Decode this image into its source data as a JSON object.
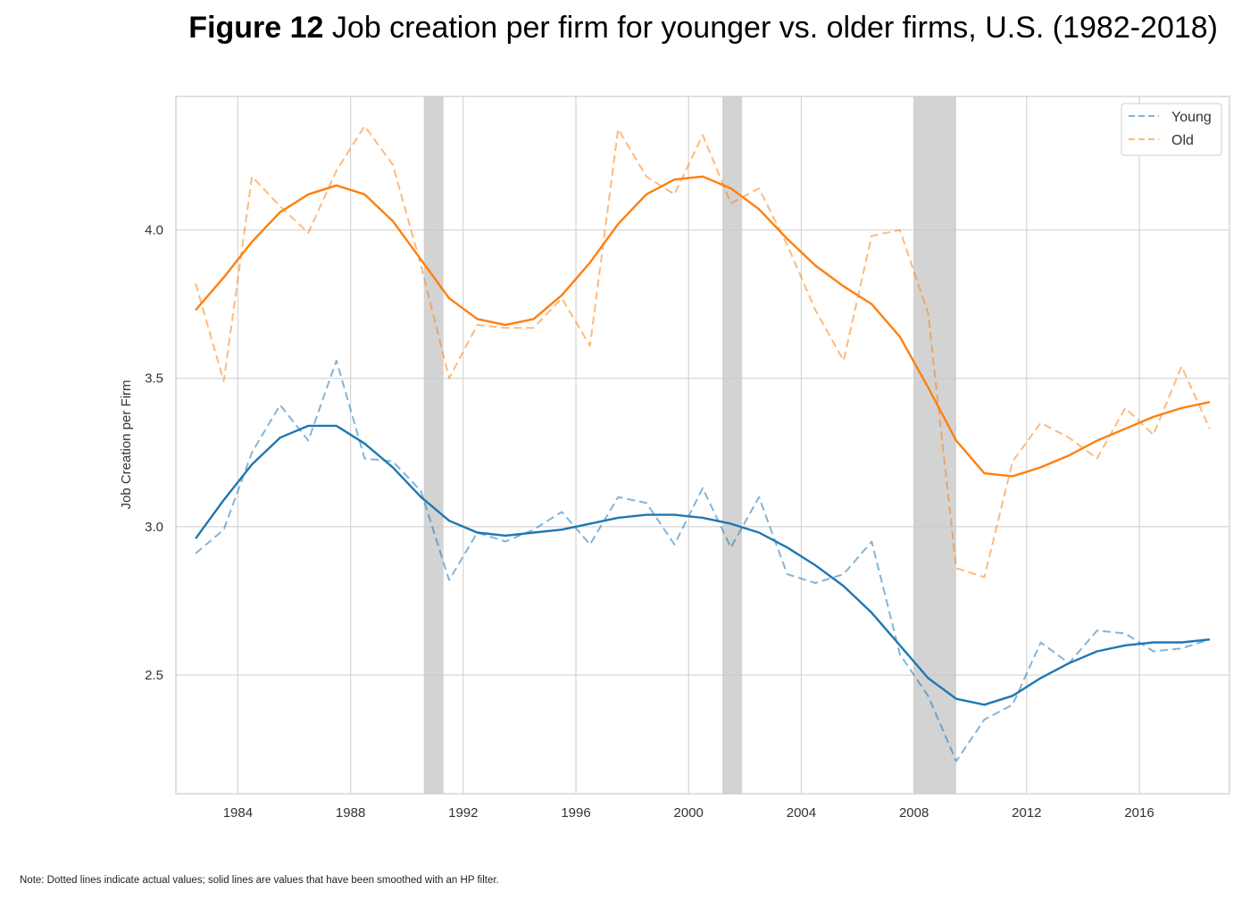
{
  "figure": {
    "label": "Figure 12",
    "title": "Job creation per firm for younger vs. older firms, U.S. (1982-2018)",
    "note": "Note: Dotted lines indicate actual values; solid lines are values that have been smoothed with an HP filter."
  },
  "chart_data": {
    "type": "line",
    "title": "Job creation per firm for younger vs. older firms, U.S. (1982-2018)",
    "xlabel": "",
    "ylabel": "Job Creation per Firm",
    "xlim": [
      1981.8,
      2019.2
    ],
    "ylim": [
      2.1,
      4.45
    ],
    "x_ticks": [
      1984,
      1988,
      1992,
      1996,
      2000,
      2004,
      2008,
      2012,
      2016
    ],
    "y_ticks": [
      2.5,
      3.0,
      3.5,
      4.0
    ],
    "y_tick_labels": [
      "2.5",
      "3.0",
      "3.5",
      "4.0"
    ],
    "grid": true,
    "legend_position": "top-right",
    "recessions": [
      [
        1990.6,
        1991.3
      ],
      [
        2001.2,
        2001.9
      ],
      [
        2008.0,
        2009.5
      ]
    ],
    "x": [
      1982.5,
      1983.5,
      1984.5,
      1985.5,
      1986.5,
      1987.5,
      1988.5,
      1989.5,
      1990.5,
      1991.5,
      1992.5,
      1993.5,
      1994.5,
      1995.5,
      1996.5,
      1997.5,
      1998.5,
      1999.5,
      2000.5,
      2001.5,
      2002.5,
      2003.5,
      2004.5,
      2005.5,
      2006.5,
      2007.5,
      2008.5,
      2009.5,
      2010.5,
      2011.5,
      2012.5,
      2013.5,
      2014.5,
      2015.5,
      2016.5,
      2017.5,
      2018.5
    ],
    "series": [
      {
        "name": "Young",
        "color": "#1f77b4",
        "actual": [
          2.91,
          2.99,
          3.25,
          3.41,
          3.29,
          3.56,
          3.23,
          3.22,
          3.12,
          2.82,
          2.98,
          2.95,
          2.99,
          3.05,
          2.94,
          3.1,
          3.08,
          2.94,
          3.13,
          2.93,
          3.1,
          2.84,
          2.81,
          2.84,
          2.95,
          2.57,
          2.43,
          2.21,
          2.35,
          2.4,
          2.61,
          2.54,
          2.65,
          2.64,
          2.58,
          2.59,
          2.62
        ],
        "smoothed": [
          2.96,
          3.09,
          3.21,
          3.3,
          3.34,
          3.34,
          3.28,
          3.2,
          3.1,
          3.02,
          2.98,
          2.97,
          2.98,
          2.99,
          3.01,
          3.03,
          3.04,
          3.04,
          3.03,
          3.01,
          2.98,
          2.93,
          2.87,
          2.8,
          2.71,
          2.6,
          2.49,
          2.42,
          2.4,
          2.43,
          2.49,
          2.54,
          2.58,
          2.6,
          2.61,
          2.61,
          2.62
        ]
      },
      {
        "name": "Old",
        "color": "#ff7f0e",
        "actual": [
          3.82,
          3.49,
          4.18,
          4.08,
          3.99,
          4.2,
          4.35,
          4.22,
          3.88,
          3.5,
          3.68,
          3.67,
          3.67,
          3.77,
          3.61,
          4.34,
          4.18,
          4.12,
          4.32,
          4.09,
          4.14,
          3.95,
          3.73,
          3.56,
          3.98,
          4.0,
          3.72,
          2.86,
          2.83,
          3.22,
          3.35,
          3.3,
          3.23,
          3.4,
          3.31,
          3.54,
          3.33
        ],
        "smoothed": [
          3.73,
          3.84,
          3.96,
          4.06,
          4.12,
          4.15,
          4.12,
          4.03,
          3.9,
          3.77,
          3.7,
          3.68,
          3.7,
          3.78,
          3.89,
          4.02,
          4.12,
          4.17,
          4.18,
          4.14,
          4.07,
          3.97,
          3.88,
          3.81,
          3.75,
          3.64,
          3.47,
          3.29,
          3.18,
          3.17,
          3.2,
          3.24,
          3.29,
          3.33,
          3.37,
          3.4,
          3.42
        ]
      }
    ]
  }
}
